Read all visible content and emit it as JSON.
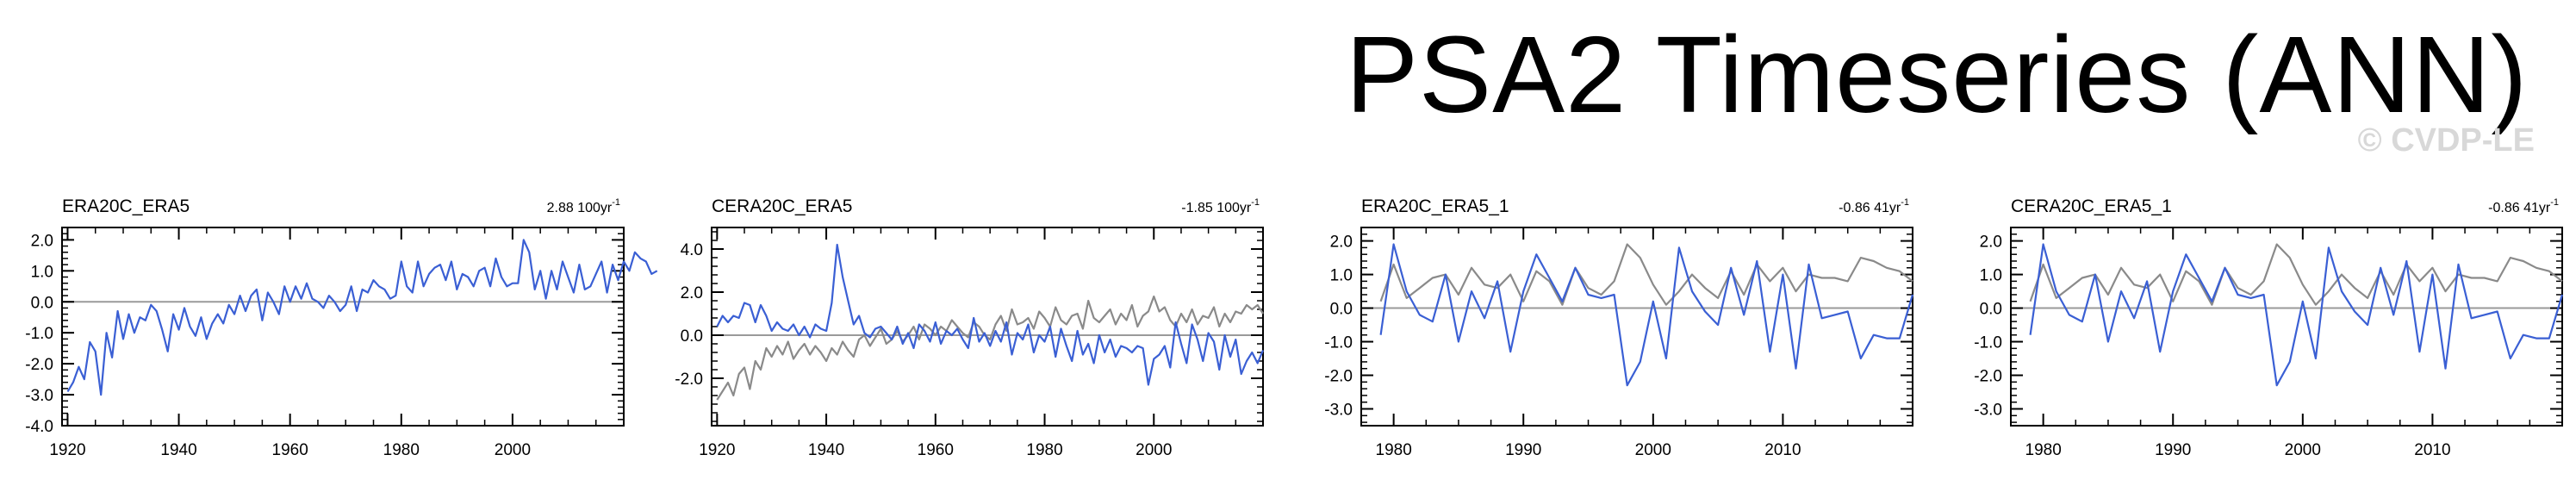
{
  "page": {
    "title": "PSA2 Timeseries (ANN)",
    "watermark": "© CVDP-LE"
  },
  "colors": {
    "primary": "#3a5fd4",
    "secondary": "#8a8a8a",
    "zero_line": "#9a9a9a",
    "axis": "#000000"
  },
  "chart_data": [
    {
      "type": "line",
      "title": "ERA20C_ERA5",
      "trend": {
        "value": "2.88",
        "unit": "100yr",
        "exponent": "-1"
      },
      "xlim": [
        1919,
        2020
      ],
      "ylim": [
        -4,
        2.4
      ],
      "xticks": [
        1920,
        1940,
        1960,
        1980,
        2000
      ],
      "yticks": [
        -4,
        -3,
        -2,
        -1,
        0,
        1,
        2
      ],
      "ytick_labels": [
        "-4.0",
        "-3.0",
        "-2.0",
        "-1.0",
        "0.0",
        "1.0",
        "2.0"
      ],
      "series": [
        {
          "name": "ERA20C_ERA5",
          "color": "#3a5fd4",
          "x_start": 1920,
          "values": [
            -2.9,
            -2.6,
            -2.1,
            -2.5,
            -1.3,
            -1.6,
            -3.0,
            -1.0,
            -1.8,
            -0.3,
            -1.2,
            -0.4,
            -1.0,
            -0.5,
            -0.6,
            -0.1,
            -0.3,
            -0.9,
            -1.6,
            -0.4,
            -0.9,
            -0.2,
            -0.8,
            -1.1,
            -0.5,
            -1.2,
            -0.7,
            -0.4,
            -0.7,
            -0.1,
            -0.4,
            0.2,
            -0.3,
            0.2,
            0.4,
            -0.6,
            0.3,
            0.0,
            -0.4,
            0.5,
            0.0,
            0.5,
            0.1,
            0.6,
            0.1,
            0.0,
            -0.2,
            0.2,
            0.0,
            -0.3,
            -0.1,
            0.5,
            -0.3,
            0.4,
            0.3,
            0.7,
            0.5,
            0.4,
            0.1,
            0.2,
            1.3,
            0.5,
            0.3,
            1.3,
            0.5,
            0.9,
            1.1,
            1.2,
            0.7,
            1.3,
            0.4,
            0.9,
            0.8,
            0.5,
            1.0,
            1.1,
            0.5,
            1.4,
            0.8,
            0.5,
            0.6,
            0.6,
            2.0,
            1.6,
            0.4,
            1.0,
            0.1,
            1.0,
            0.4,
            1.3,
            0.8,
            0.3,
            1.2,
            0.4,
            0.5,
            0.9,
            1.3,
            0.3,
            1.2,
            0.7,
            1.3,
            1.0,
            1.6,
            1.4,
            1.3,
            0.9,
            1.0
          ]
        }
      ]
    },
    {
      "type": "line",
      "title": "CERA20C_ERA5",
      "trend": {
        "value": "-1.85",
        "unit": "100yr",
        "exponent": "-1"
      },
      "xlim": [
        1919,
        2020
      ],
      "ylim": [
        -4.2,
        5.0
      ],
      "xticks": [
        1920,
        1940,
        1960,
        1980,
        2000
      ],
      "yticks": [
        -2,
        0,
        2,
        4
      ],
      "ytick_labels": [
        "-2.0",
        "0.0",
        "2.0",
        "4.0"
      ],
      "series": [
        {
          "name": "CERA20C_ERA5",
          "color": "#3a5fd4",
          "x_start": 1920,
          "values": [
            0.4,
            0.9,
            0.6,
            0.9,
            0.8,
            1.5,
            1.4,
            0.6,
            1.4,
            0.9,
            0.2,
            0.6,
            0.3,
            0.2,
            0.5,
            0.0,
            0.4,
            -0.1,
            0.5,
            0.3,
            0.2,
            1.5,
            4.2,
            2.7,
            1.6,
            0.5,
            0.9,
            0.1,
            -0.1,
            0.3,
            0.4,
            0.1,
            -0.2,
            0.4,
            -0.4,
            0.1,
            -0.6,
            0.5,
            0.2,
            -0.3,
            0.6,
            -0.4,
            0.2,
            0.0,
            0.3,
            -0.2,
            -0.6,
            0.8,
            -0.3,
            0.1,
            -0.5,
            0.2,
            -0.3,
            0.6,
            -0.9,
            0.1,
            -0.2,
            0.5,
            -0.8,
            0.0,
            -0.3,
            0.4,
            -1.0,
            0.3,
            -0.5,
            -1.2,
            0.2,
            -0.9,
            -0.4,
            -1.3,
            0.0,
            -0.8,
            -0.2,
            -1.0,
            -0.5,
            -0.6,
            -0.8,
            -0.5,
            -0.6,
            -2.3,
            -1.1,
            -0.9,
            -0.5,
            -1.5,
            0.6,
            -0.4,
            -1.3,
            0.5,
            -0.2,
            -1.2,
            0.1,
            -0.3,
            -1.6,
            0.0,
            -1.0,
            -0.2,
            -1.8,
            -1.2,
            -0.8,
            -1.3,
            -0.7
          ]
        },
        {
          "name": "ERA5",
          "color": "#8a8a8a",
          "x_start": 1920,
          "values": [
            -3.0,
            -2.6,
            -2.2,
            -2.8,
            -1.8,
            -1.5,
            -2.5,
            -1.2,
            -1.6,
            -0.6,
            -1.0,
            -0.5,
            -0.9,
            -0.3,
            -1.1,
            -0.7,
            -0.4,
            -0.9,
            -0.5,
            -0.8,
            -1.2,
            -0.6,
            -0.9,
            -0.3,
            -0.7,
            -1.0,
            -0.2,
            0.0,
            -0.5,
            -0.1,
            0.3,
            -0.4,
            -0.2,
            0.2,
            -0.3,
            0.0,
            0.4,
            -0.2,
            0.5,
            0.3,
            0.0,
            0.4,
            0.2,
            0.7,
            0.4,
            0.1,
            -0.1,
            0.6,
            0.4,
            0.0,
            -0.2,
            0.5,
            0.9,
            0.2,
            1.2,
            0.5,
            0.6,
            0.8,
            0.3,
            1.1,
            0.8,
            0.4,
            1.3,
            0.7,
            0.5,
            0.9,
            1.0,
            0.3,
            1.6,
            0.8,
            0.6,
            0.9,
            1.2,
            0.5,
            1.0,
            0.7,
            1.4,
            0.4,
            0.9,
            1.1,
            1.8,
            1.1,
            1.3,
            0.7,
            0.4,
            1.0,
            0.6,
            1.2,
            0.5,
            0.9,
            0.8,
            1.3,
            0.4,
            1.0,
            0.6,
            1.1,
            1.0,
            1.4,
            1.2,
            1.4,
            1.0
          ]
        }
      ]
    },
    {
      "type": "line",
      "title": "ERA20C_ERA5_1",
      "trend": {
        "value": "-0.86",
        "unit": "41yr",
        "exponent": "-1"
      },
      "xlim": [
        1977.5,
        2020
      ],
      "ylim": [
        -3.5,
        2.4
      ],
      "xticks": [
        1980,
        1990,
        2000,
        2010
      ],
      "yticks": [
        -3,
        -2,
        -1,
        0,
        1,
        2
      ],
      "ytick_labels": [
        "-3.0",
        "-2.0",
        "-1.0",
        "0.0",
        "1.0",
        "2.0"
      ],
      "series": [
        {
          "name": "ERA20C_ERA5_1",
          "color": "#3a5fd4",
          "x_start": 1979,
          "values": [
            -0.8,
            1.9,
            0.5,
            -0.2,
            -0.4,
            1.0,
            -1.0,
            0.5,
            -0.3,
            0.8,
            -1.3,
            0.5,
            1.6,
            0.9,
            0.2,
            1.2,
            0.4,
            0.3,
            0.4,
            -2.3,
            -1.6,
            0.2,
            -1.5,
            1.8,
            0.5,
            -0.1,
            -0.5,
            1.2,
            -0.2,
            1.4,
            -1.3,
            1.0,
            -1.8,
            1.3,
            -0.3,
            -0.2,
            -0.1,
            -1.5,
            -0.8,
            -0.9,
            -0.9,
            0.4
          ]
        },
        {
          "name": "ERA5",
          "color": "#8a8a8a",
          "x_start": 1979,
          "values": [
            0.2,
            1.3,
            0.3,
            0.6,
            0.9,
            1.0,
            0.4,
            1.2,
            0.7,
            0.6,
            1.0,
            0.2,
            1.1,
            0.8,
            0.1,
            1.2,
            0.6,
            0.4,
            0.8,
            1.9,
            1.5,
            0.7,
            0.1,
            0.5,
            1.0,
            0.6,
            0.3,
            1.1,
            0.4,
            1.3,
            0.8,
            1.2,
            0.5,
            1.0,
            0.9,
            0.9,
            0.8,
            1.5,
            1.4,
            1.2,
            1.1,
            0.8
          ]
        }
      ]
    },
    {
      "type": "line",
      "title": "CERA20C_ERA5_1",
      "trend": {
        "value": "-0.86",
        "unit": "41yr",
        "exponent": "-1"
      },
      "xlim": [
        1977.5,
        2020
      ],
      "ylim": [
        -3.5,
        2.4
      ],
      "xticks": [
        1980,
        1990,
        2000,
        2010
      ],
      "yticks": [
        -3,
        -2,
        -1,
        0,
        1,
        2
      ],
      "ytick_labels": [
        "-3.0",
        "-2.0",
        "-1.0",
        "0.0",
        "1.0",
        "2.0"
      ],
      "series": [
        {
          "name": "CERA20C_ERA5_1",
          "color": "#3a5fd4",
          "x_start": 1979,
          "values": [
            -0.8,
            1.9,
            0.5,
            -0.2,
            -0.4,
            1.0,
            -1.0,
            0.5,
            -0.3,
            0.8,
            -1.3,
            0.5,
            1.6,
            0.9,
            0.2,
            1.2,
            0.4,
            0.3,
            0.4,
            -2.3,
            -1.6,
            0.2,
            -1.5,
            1.8,
            0.5,
            -0.1,
            -0.5,
            1.2,
            -0.2,
            1.4,
            -1.3,
            1.0,
            -1.8,
            1.3,
            -0.3,
            -0.2,
            -0.1,
            -1.5,
            -0.8,
            -0.9,
            -0.9,
            0.4
          ]
        },
        {
          "name": "ERA5",
          "color": "#8a8a8a",
          "x_start": 1979,
          "values": [
            0.2,
            1.3,
            0.3,
            0.6,
            0.9,
            1.0,
            0.4,
            1.2,
            0.7,
            0.6,
            1.0,
            0.2,
            1.1,
            0.8,
            0.1,
            1.2,
            0.6,
            0.4,
            0.8,
            1.9,
            1.5,
            0.7,
            0.1,
            0.5,
            1.0,
            0.6,
            0.3,
            1.1,
            0.4,
            1.3,
            0.8,
            1.2,
            0.5,
            1.0,
            0.9,
            0.9,
            0.8,
            1.5,
            1.4,
            1.2,
            1.1,
            0.8
          ]
        }
      ]
    }
  ]
}
